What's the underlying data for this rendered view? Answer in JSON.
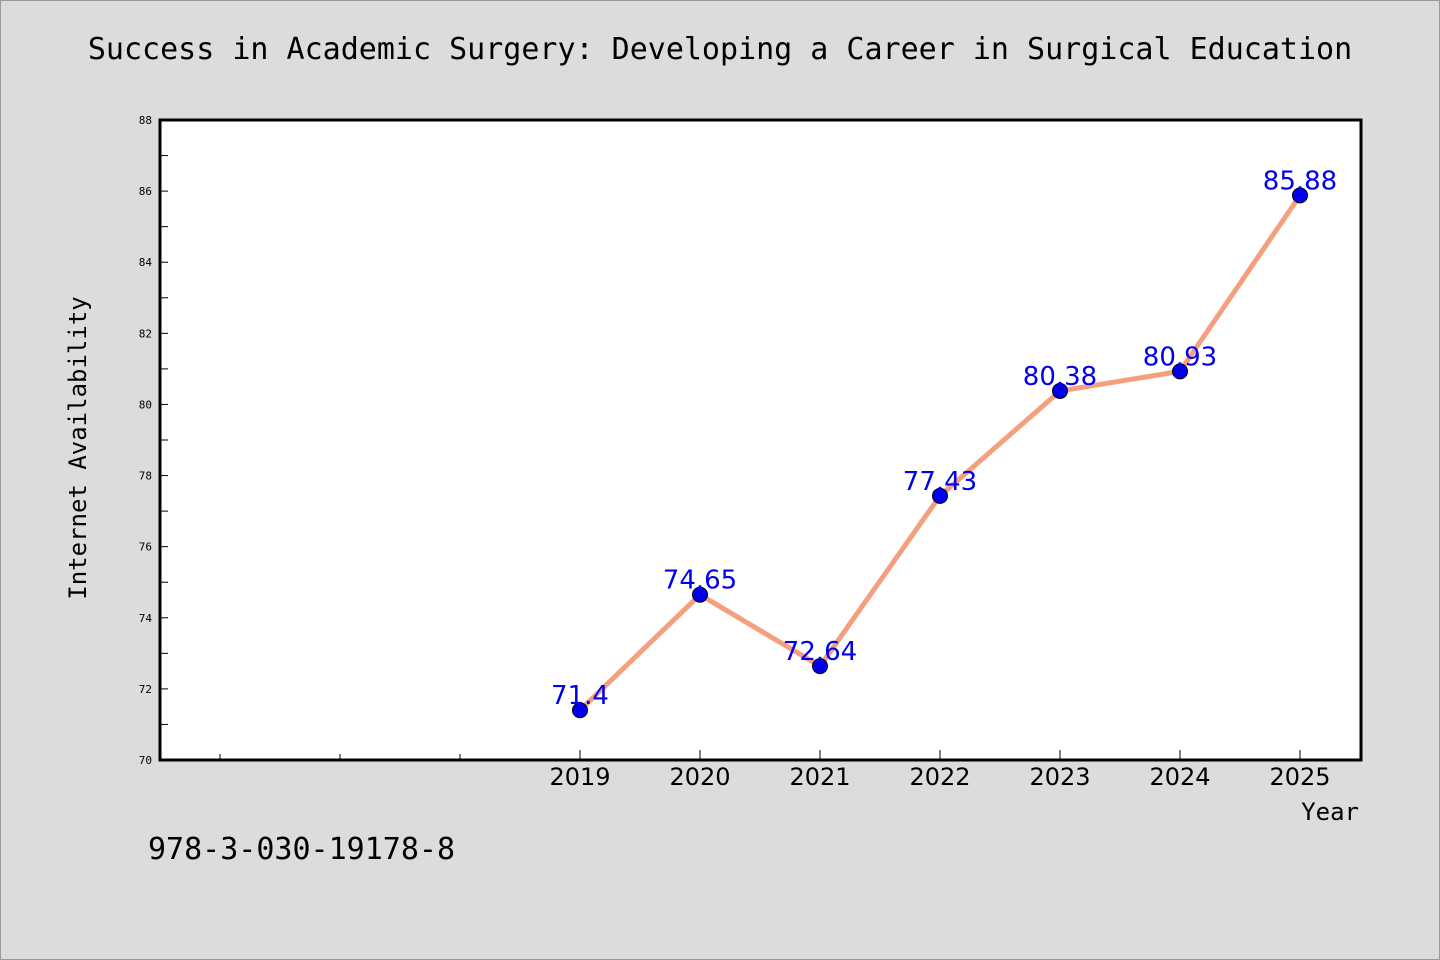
{
  "colors": {
    "background": "#dcdcdc",
    "plot_background": "#ffffff",
    "line": "#f4a07e",
    "marker": "#0000ee",
    "data_label": "#0000ee"
  },
  "footer": {
    "isbn": "978-3-030-19178-8"
  },
  "chart_data": {
    "type": "line",
    "title": "Success in Academic Surgery: Developing a Career in Surgical Education",
    "xlabel": "Year",
    "ylabel": "Internet Availability",
    "ylim": [
      70,
      88
    ],
    "y_ticks": [
      70,
      72,
      74,
      76,
      78,
      80,
      82,
      84,
      86,
      88
    ],
    "x_ticks": [
      "2019",
      "2020",
      "2021",
      "2022",
      "2023",
      "2024",
      "2025"
    ],
    "grid": false,
    "legend": "none",
    "series": [
      {
        "x": [
          2019,
          2020,
          2021,
          2022,
          2023,
          2024,
          2025
        ],
        "values": [
          71.4,
          74.65,
          72.64,
          77.43,
          80.38,
          80.93,
          85.88
        ],
        "labels": [
          "71.4",
          "74.65",
          "72.64",
          "77.43",
          "80.38",
          "80.93",
          "85.88"
        ]
      }
    ]
  }
}
